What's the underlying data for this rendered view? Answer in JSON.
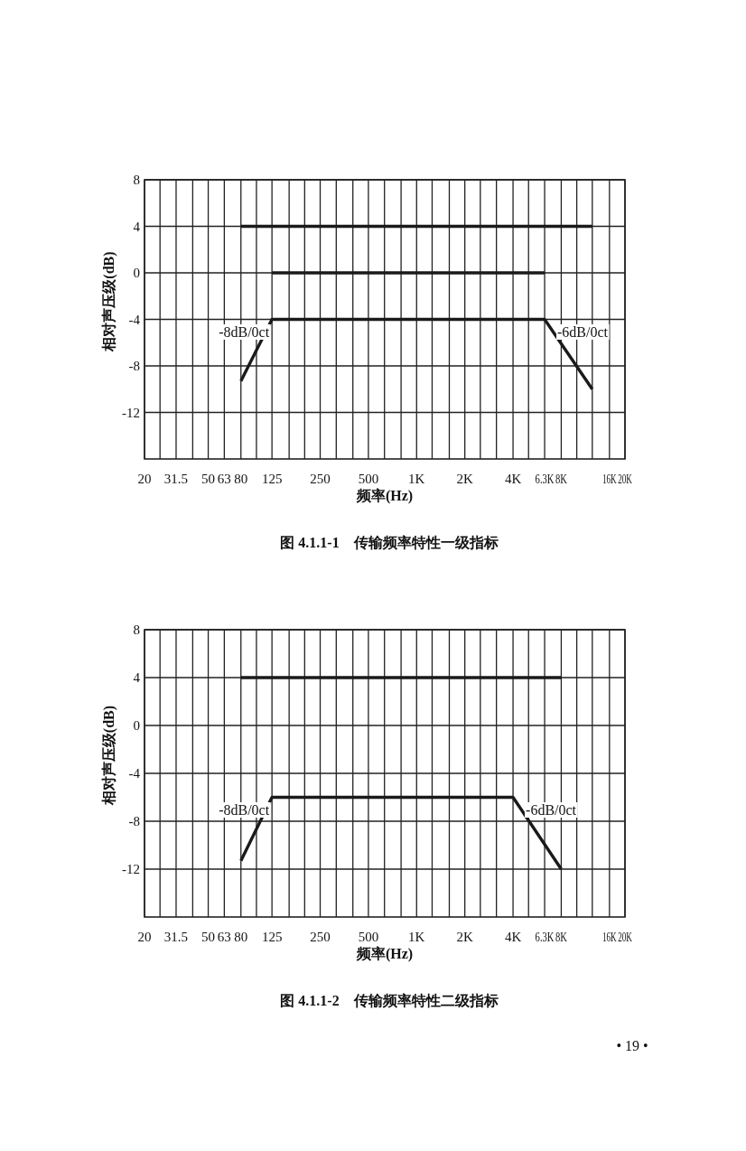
{
  "chart_data": [
    {
      "type": "line",
      "xlabel": "频率(Hz)",
      "ylabel": "相对声压级(dB)",
      "log": "x",
      "grid": true,
      "xlim": [
        20,
        20000
      ],
      "ylim": [
        -16,
        8
      ],
      "yticks": [
        8,
        4,
        0,
        -4,
        -8,
        -12
      ],
      "xticks": [
        20,
        {
          "value": 25,
          "label": null
        },
        31.5,
        {
          "value": 40,
          "label": null
        },
        50,
        63,
        80,
        {
          "value": 100,
          "label": null
        },
        125,
        {
          "value": 160,
          "label": null
        },
        {
          "value": 200,
          "label": null
        },
        250,
        {
          "value": 315,
          "label": null
        },
        {
          "value": 400,
          "label": null
        },
        500,
        {
          "value": 630,
          "label": null
        },
        {
          "value": 800,
          "label": null
        },
        {
          "value": 1000,
          "label": "1K"
        },
        {
          "value": 1250,
          "label": null
        },
        {
          "value": 1600,
          "label": null
        },
        {
          "value": 2000,
          "label": "2K"
        },
        {
          "value": 2500,
          "label": null
        },
        {
          "value": 3150,
          "label": null
        },
        {
          "value": 4000,
          "label": "4K"
        },
        {
          "value": 5000,
          "label": null
        },
        {
          "value": 6300,
          "label": "6.3K"
        },
        {
          "value": 8000,
          "label": "8K"
        },
        {
          "value": 10000,
          "label": null
        },
        {
          "value": 12500,
          "label": null
        },
        {
          "value": 16000,
          "label": "16K"
        },
        {
          "value": 20000,
          "label": "20K"
        }
      ],
      "series": [
        {
          "color": "#1a1a1a",
          "x": [
            80,
            12500
          ],
          "values": [
            4,
            4
          ]
        },
        {
          "color": "#1a1a1a",
          "x": [
            125,
            6300
          ],
          "values": [
            0,
            0
          ]
        },
        {
          "color": "#1a1a1a",
          "x": [
            80,
            125,
            6300,
            12500
          ],
          "values": [
            -9.3,
            -4,
            -4,
            -10
          ]
        }
      ],
      "annotations": [
        "-8dB/0ct",
        "-6dB/0ct",
        "图 4.1.1-1　传输频率特性一级指标"
      ]
    },
    {
      "type": "line",
      "xlabel": "频率(Hz)",
      "ylabel": "相对声压级(dB)",
      "log": "x",
      "grid": true,
      "xlim": [
        20,
        20000
      ],
      "ylim": [
        -16,
        8
      ],
      "yticks": [
        8,
        4,
        0,
        -4,
        -8,
        -12
      ],
      "xticks": [
        20,
        {
          "value": 25,
          "label": null
        },
        31.5,
        {
          "value": 40,
          "label": null
        },
        50,
        63,
        80,
        {
          "value": 100,
          "label": null
        },
        125,
        {
          "value": 160,
          "label": null
        },
        {
          "value": 200,
          "label": null
        },
        250,
        {
          "value": 315,
          "label": null
        },
        {
          "value": 400,
          "label": null
        },
        500,
        {
          "value": 630,
          "label": null
        },
        {
          "value": 800,
          "label": null
        },
        {
          "value": 1000,
          "label": "1K"
        },
        {
          "value": 1250,
          "label": null
        },
        {
          "value": 1600,
          "label": null
        },
        {
          "value": 2000,
          "label": "2K"
        },
        {
          "value": 2500,
          "label": null
        },
        {
          "value": 3150,
          "label": null
        },
        {
          "value": 4000,
          "label": "4K"
        },
        {
          "value": 5000,
          "label": null
        },
        {
          "value": 6300,
          "label": "6.3K"
        },
        {
          "value": 8000,
          "label": "8K"
        },
        {
          "value": 10000,
          "label": null
        },
        {
          "value": 12500,
          "label": null
        },
        {
          "value": 16000,
          "label": "16K"
        },
        {
          "value": 20000,
          "label": "20K"
        }
      ],
      "series": [
        {
          "color": "#1a1a1a",
          "x": [
            80,
            8000
          ],
          "values": [
            4,
            4
          ]
        },
        {
          "color": "#1a1a1a",
          "x": [
            80,
            125,
            4000,
            8000
          ],
          "values": [
            -11.3,
            -6,
            -6,
            -12
          ]
        }
      ],
      "annotations": [
        "-8dB/0ct",
        "-6dB/0ct",
        "图 4.1.1-2　传输频率特性二级指标",
        "• 19 •"
      ]
    }
  ]
}
